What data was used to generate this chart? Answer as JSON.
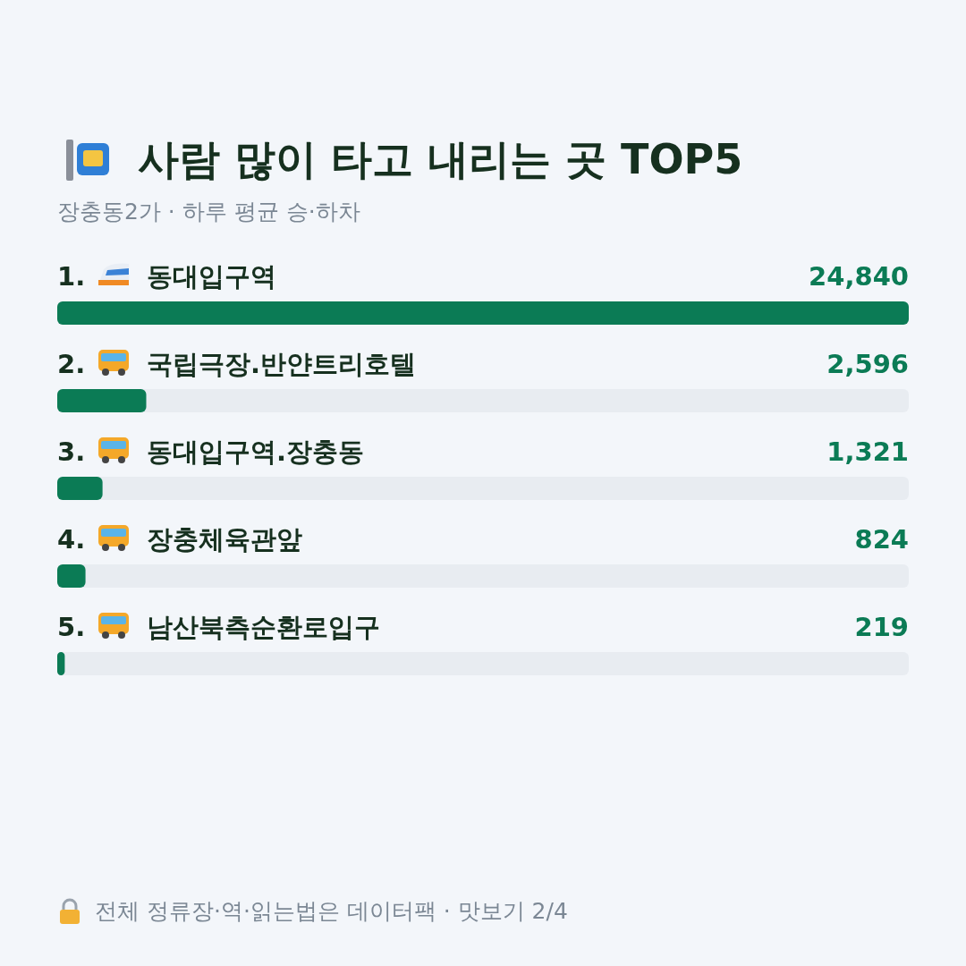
{
  "chart_data": {
    "type": "bar",
    "orientation": "horizontal",
    "title": "사람 많이 타고 내리는 곳 TOP5",
    "subtitle": "장충동2가 · 하루 평균 승·하차",
    "categories": [
      "1. 동대입구역",
      "2. 국립극장.반얀트리호텔",
      "3. 동대입구역.장충동",
      "4. 장충체육관앞",
      "5. 남산북측순환로입구"
    ],
    "values": [
      24840,
      2596,
      1321,
      824,
      219
    ],
    "color": "#0b7b55",
    "data_labels": true,
    "value_labels": [
      "24,840",
      "2,596",
      "1,321",
      "824",
      "219"
    ],
    "annotations": [
      "전체 정류장·역·읽는법은 데이터팩 · 맛보기 2/4"
    ]
  }
}
